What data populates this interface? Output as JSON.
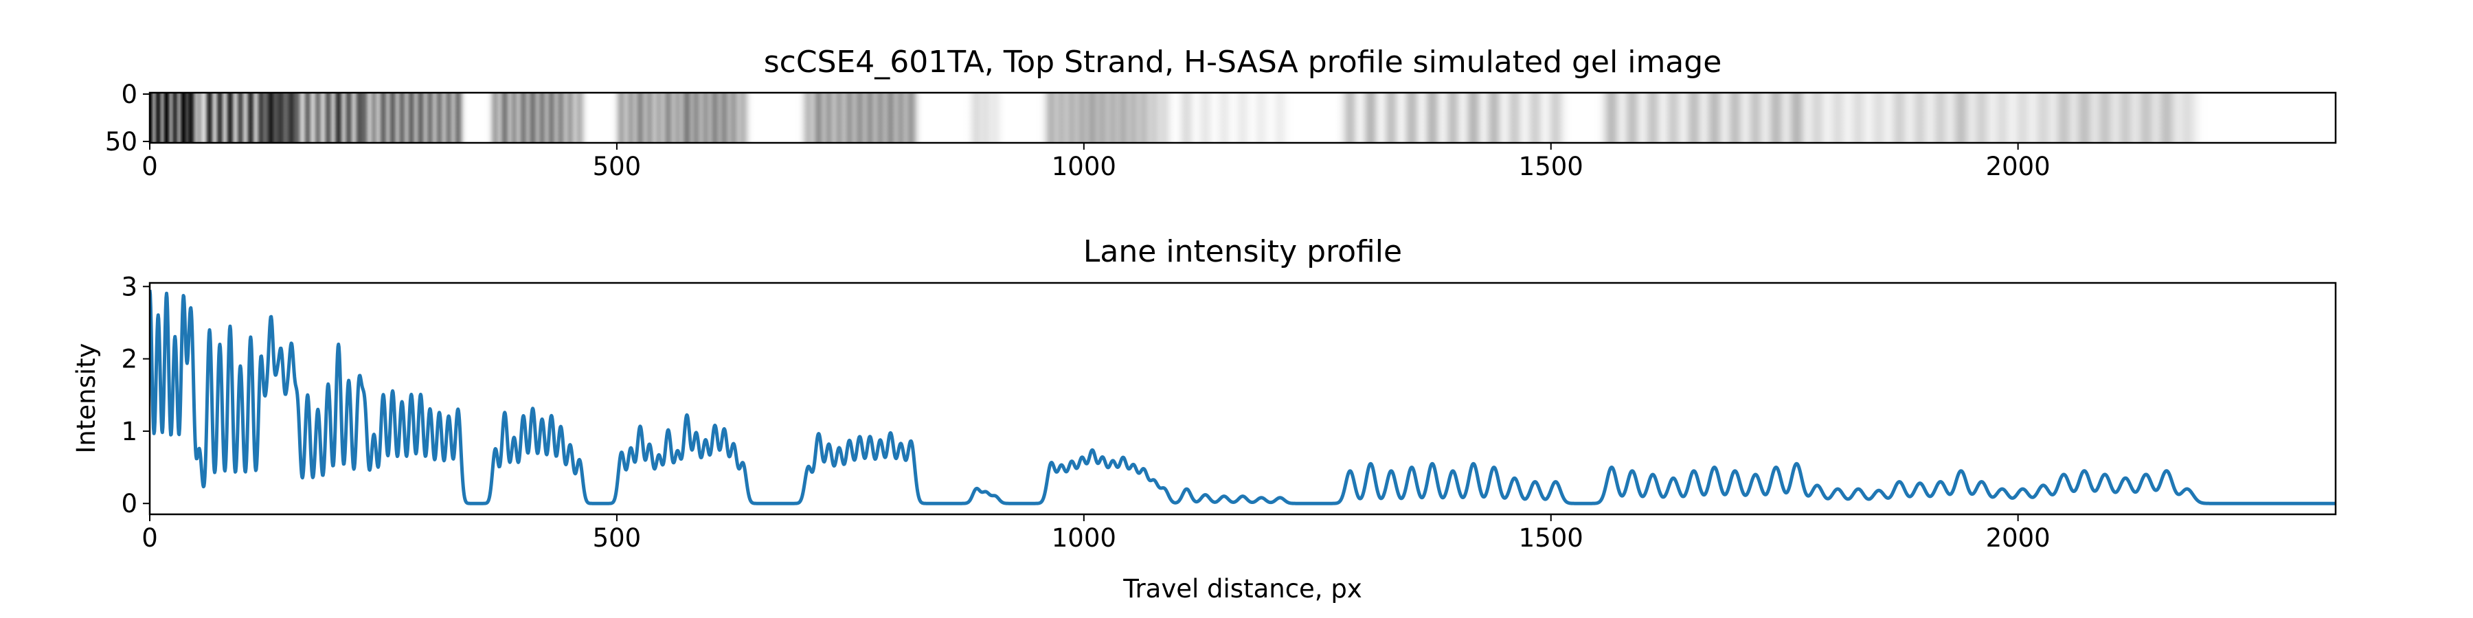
{
  "chart_data": [
    {
      "type": "heatmap",
      "title": "scCSE4_601TA, Top Strand, H-SASA profile simulated gel image",
      "xlim": [
        0,
        2340
      ],
      "ylim": [
        0,
        50
      ],
      "xticks": [
        0,
        500,
        1000,
        1500,
        2000
      ],
      "yticks": [
        0,
        50
      ],
      "colormap": "grayscale (dark = high intensity)",
      "description_source": "Lane intensity profile"
    },
    {
      "type": "line",
      "title": "Lane intensity profile",
      "xlabel": "Travel distance, px",
      "ylabel": "Intensity",
      "xlim": [
        0,
        2340
      ],
      "ylim": [
        -0.15,
        3.05
      ],
      "xticks": [
        0,
        500,
        1000,
        1500,
        2000
      ],
      "yticks": [
        0,
        1,
        2,
        3
      ],
      "color": "#1f77b4",
      "groups": [
        {
          "start": 0,
          "spacing": 9,
          "amps": [
            2.95,
            2.6,
            2.9,
            2.3,
            2.8,
            1.9
          ]
        },
        {
          "start": 42,
          "spacing": 11,
          "amps": [
            1.3,
            0.75,
            2.4,
            2.2,
            2.45,
            1.9,
            2.3,
            1.95,
            2.3,
            1.8,
            1.9
          ]
        },
        {
          "start": 125,
          "spacing": 11,
          "amps": [
            1.1,
            1.35,
            1.15,
            1.35,
            1.5,
            1.3,
            1.65,
            2.2,
            1.7,
            1.6
          ]
        },
        {
          "start": 230,
          "spacing": 10,
          "amps": [
            1.3,
            0.95,
            1.5,
            1.55,
            1.4,
            1.5,
            1.5,
            1.3,
            1.25,
            1.2,
            1.3
          ]
        },
        {
          "start": 370,
          "spacing": 10,
          "amps": [
            0.75,
            1.25,
            0.9,
            1.2,
            1.3,
            1.15,
            1.2,
            1.05,
            0.8,
            0.6
          ]
        },
        {
          "start": 505,
          "spacing": 10,
          "amps": [
            0.7,
            0.75,
            1.05,
            0.8,
            0.65,
            1.0,
            0.7,
            1.2,
            0.95,
            0.85,
            1.05,
            1.0,
            0.8,
            0.55
          ]
        },
        {
          "start": 705,
          "spacing": 11,
          "amps": [
            0.5,
            0.95,
            0.8,
            0.75,
            0.85,
            0.9,
            0.9,
            0.85,
            0.95,
            0.8,
            0.85
          ]
        },
        {
          "start": 885,
          "spacing": 10,
          "amps": [
            0.2,
            0.15,
            0.1
          ]
        },
        {
          "start": 965,
          "spacing": 11,
          "amps": [
            0.55,
            0.5,
            0.55,
            0.6,
            0.7,
            0.6,
            0.55,
            0.6,
            0.5,
            0.45,
            0.3,
            0.2
          ]
        },
        {
          "start": 1110,
          "spacing": 20,
          "amps": [
            0.2,
            0.12,
            0.1,
            0.1,
            0.08,
            0.08
          ]
        },
        {
          "start": 1285,
          "spacing": 22,
          "amps": [
            0.45,
            0.55,
            0.45,
            0.5,
            0.55,
            0.45,
            0.55,
            0.5,
            0.35,
            0.3,
            0.3
          ]
        },
        {
          "start": 1565,
          "spacing": 22,
          "amps": [
            0.5,
            0.45,
            0.4,
            0.35,
            0.45,
            0.5,
            0.45,
            0.4,
            0.5,
            0.55,
            0.25,
            0.2,
            0.2,
            0.18,
            0.3,
            0.28,
            0.3,
            0.45,
            0.3,
            0.2,
            0.2,
            0.25,
            0.4,
            0.45,
            0.4,
            0.35,
            0.4,
            0.45,
            0.2
          ]
        }
      ]
    }
  ]
}
